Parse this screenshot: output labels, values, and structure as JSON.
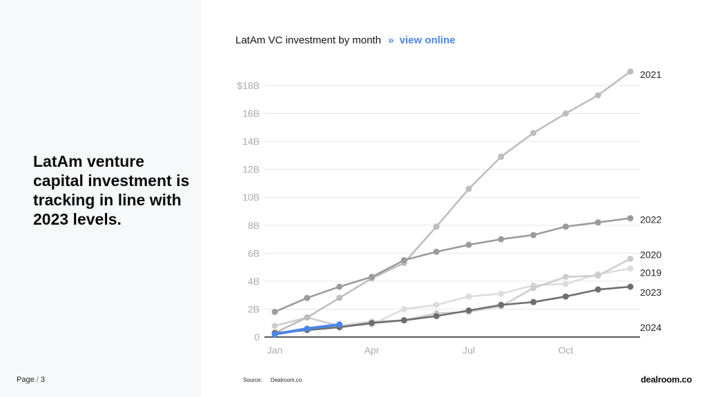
{
  "headline": "LatAm venture capital investment is tracking in line with 2023 levels.",
  "page": {
    "label": "Page",
    "separator": "/",
    "number": "3"
  },
  "chart_title": {
    "text": "LatAm VC investment by month",
    "chevron": "»",
    "link": "view online"
  },
  "source": {
    "label": "Source:",
    "value": "Dealroom.co"
  },
  "logo": "dealroom.co",
  "chart_data": {
    "type": "line",
    "title": "LatAm VC investment by month",
    "xlabel": "",
    "ylabel": "",
    "ylim": [
      0,
      18
    ],
    "xlim": [
      0,
      11
    ],
    "x_ticks": [
      {
        "value": 0,
        "label": "Jan"
      },
      {
        "value": 3,
        "label": "Apr"
      },
      {
        "value": 6,
        "label": "Jul"
      },
      {
        "value": 9,
        "label": "Oct"
      }
    ],
    "y_ticks": [
      {
        "value": 0,
        "label": "0"
      },
      {
        "value": 2,
        "label": "2B"
      },
      {
        "value": 4,
        "label": "4B"
      },
      {
        "value": 6,
        "label": "6B"
      },
      {
        "value": 8,
        "label": "8B"
      },
      {
        "value": 10,
        "label": "10B"
      },
      {
        "value": 12,
        "label": "12B"
      },
      {
        "value": 14,
        "label": "14B"
      },
      {
        "value": 16,
        "label": "16B"
      },
      {
        "value": 18,
        "label": "$18B"
      }
    ],
    "grid": true,
    "series": [
      {
        "name": "2019",
        "color": "#dcdcdc",
        "values": [
          0.2,
          0.5,
          0.8,
          0.9,
          2.0,
          2.3,
          2.9,
          3.1,
          3.7,
          3.8,
          4.5,
          4.9
        ]
      },
      {
        "name": "2020",
        "color": "#cdcdcd",
        "values": [
          0.8,
          1.4,
          0.8,
          1.1,
          1.2,
          1.7,
          1.8,
          2.2,
          3.5,
          4.3,
          4.4,
          5.6
        ]
      },
      {
        "name": "2021",
        "color": "#bdbdbd",
        "values": [
          0.3,
          1.4,
          2.8,
          4.2,
          5.3,
          7.9,
          10.6,
          12.9,
          14.6,
          16.0,
          17.3,
          19.0
        ]
      },
      {
        "name": "2022",
        "color": "#9b9b9b",
        "values": [
          1.8,
          2.8,
          3.6,
          4.3,
          5.5,
          6.1,
          6.6,
          7.0,
          7.3,
          7.9,
          8.2,
          8.5
        ]
      },
      {
        "name": "2023",
        "color": "#6e6e6e",
        "values": [
          0.3,
          0.5,
          0.7,
          1.0,
          1.2,
          1.5,
          1.9,
          2.3,
          2.5,
          2.9,
          3.4,
          3.6
        ]
      },
      {
        "name": "2024",
        "color": "#4a86e8",
        "values": [
          0.2,
          0.6,
          0.9
        ]
      }
    ],
    "label_positions": [
      {
        "name": "2021",
        "value": 18.8
      },
      {
        "name": "2022",
        "value": 8.4
      },
      {
        "name": "2020",
        "value": 5.9
      },
      {
        "name": "2019",
        "value": 4.6
      },
      {
        "name": "2023",
        "value": 3.2
      },
      {
        "name": "2024",
        "value": 0.7
      }
    ]
  }
}
